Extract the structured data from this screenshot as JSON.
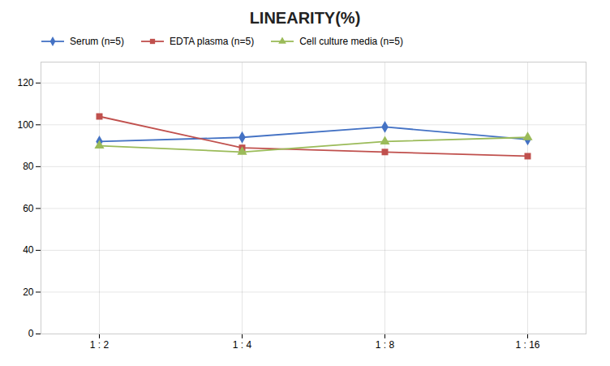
{
  "chart_data": {
    "type": "line",
    "title": "LINEARITY(%)",
    "categories": [
      "1 : 2",
      "1 : 4",
      "1 : 8",
      "1 : 16"
    ],
    "series": [
      {
        "name": "Serum (n=5)",
        "color": "#4472C4",
        "marker": "diamond",
        "values": [
          92,
          94,
          99,
          93
        ]
      },
      {
        "name": "EDTA plasma (n=5)",
        "color": "#C0504D",
        "marker": "square",
        "values": [
          104,
          89,
          87,
          85
        ]
      },
      {
        "name": "Cell culture media (n=5)",
        "color": "#9BBB59",
        "marker": "triangle",
        "values": [
          90,
          87,
          92,
          94
        ]
      }
    ],
    "ylim": [
      0,
      130
    ],
    "yticks": [
      0,
      20,
      40,
      60,
      80,
      100,
      120
    ],
    "grid": true,
    "legend": "upper left"
  }
}
